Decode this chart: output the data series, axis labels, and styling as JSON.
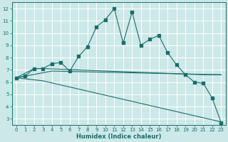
{
  "xlabel": "Humidex (Indice chaleur)",
  "background_color": "#cce8e8",
  "grid_color": "#ffffff",
  "line_color": "#1a6e6a",
  "xlim": [
    -0.5,
    23.5
  ],
  "ylim": [
    2.5,
    12.5
  ],
  "xticks": [
    0,
    1,
    2,
    3,
    4,
    5,
    6,
    7,
    8,
    9,
    10,
    11,
    12,
    13,
    14,
    15,
    16,
    17,
    18,
    19,
    20,
    21,
    22,
    23
  ],
  "yticks": [
    3,
    4,
    5,
    6,
    7,
    8,
    9,
    10,
    11,
    12
  ],
  "curve1_x": [
    0,
    1,
    2,
    3,
    4,
    5,
    6,
    7,
    8,
    9,
    10,
    11,
    12,
    13,
    14,
    15,
    16,
    17,
    18,
    19,
    20,
    21,
    22,
    23
  ],
  "curve1_y": [
    6.35,
    6.5,
    7.1,
    7.1,
    7.5,
    7.6,
    6.9,
    8.1,
    8.9,
    10.5,
    11.1,
    12.0,
    9.2,
    11.7,
    9.0,
    9.5,
    9.8,
    8.4,
    7.4,
    6.6,
    6.0,
    5.9,
    4.7,
    2.7
  ],
  "curve2_x": [
    0,
    2,
    3,
    21,
    23
  ],
  "curve2_y": [
    6.35,
    7.1,
    7.1,
    6.6,
    6.6
  ],
  "curve3_x": [
    0,
    4,
    23
  ],
  "curve3_y": [
    6.35,
    6.9,
    6.6
  ],
  "curve4_x": [
    0,
    3,
    23
  ],
  "curve4_y": [
    6.35,
    6.1,
    2.75
  ]
}
